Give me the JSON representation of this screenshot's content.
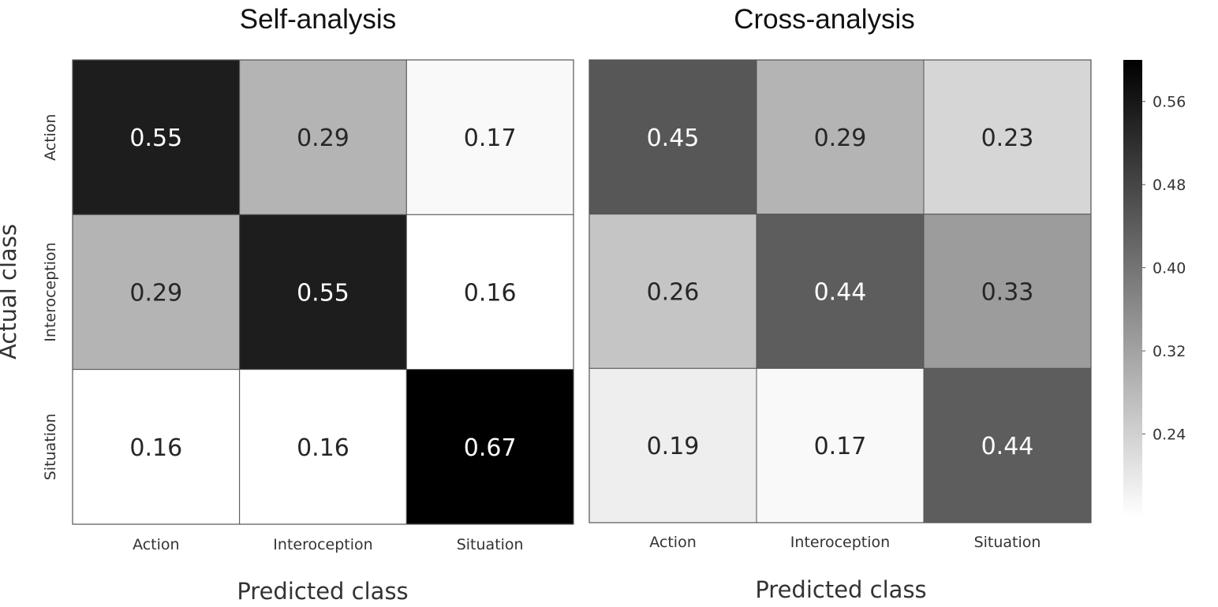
{
  "chart_data": [
    {
      "type": "heatmap",
      "title": "Self-analysis",
      "xlabel": "Predicted class",
      "ylabel": "Actual class",
      "x_categories": [
        "Action",
        "Interoception",
        "Situation"
      ],
      "y_categories": [
        "Action",
        "Interoception",
        "Situation"
      ],
      "values": [
        [
          0.55,
          0.29,
          0.17
        ],
        [
          0.29,
          0.55,
          0.16
        ],
        [
          0.16,
          0.16,
          0.67
        ]
      ],
      "labels": [
        [
          "0.55",
          "0.29",
          "0.17"
        ],
        [
          "0.29",
          "0.55",
          "0.16"
        ],
        [
          "0.16",
          "0.16",
          "0.67"
        ]
      ]
    },
    {
      "type": "heatmap",
      "title": "Cross-analysis",
      "xlabel": "Predicted class",
      "ylabel": "",
      "x_categories": [
        "Action",
        "Interoception",
        "Situation"
      ],
      "y_categories": [
        "Action",
        "Interoception",
        "Situation"
      ],
      "values": [
        [
          0.45,
          0.29,
          0.23
        ],
        [
          0.26,
          0.44,
          0.33
        ],
        [
          0.19,
          0.17,
          0.44
        ]
      ],
      "labels": [
        [
          "0.45",
          "0.29",
          "0.23"
        ],
        [
          "0.26",
          "0.44",
          "0.33"
        ],
        [
          "0.19",
          "0.17",
          "0.44"
        ]
      ]
    }
  ],
  "colorbar": {
    "colormap": "greys",
    "range": [
      0.16,
      0.6
    ],
    "ticks": [
      0.56,
      0.48,
      0.4,
      0.32,
      0.24
    ],
    "tick_labels": [
      "0.56",
      "0.48",
      "0.40",
      "0.32",
      "0.24"
    ]
  }
}
